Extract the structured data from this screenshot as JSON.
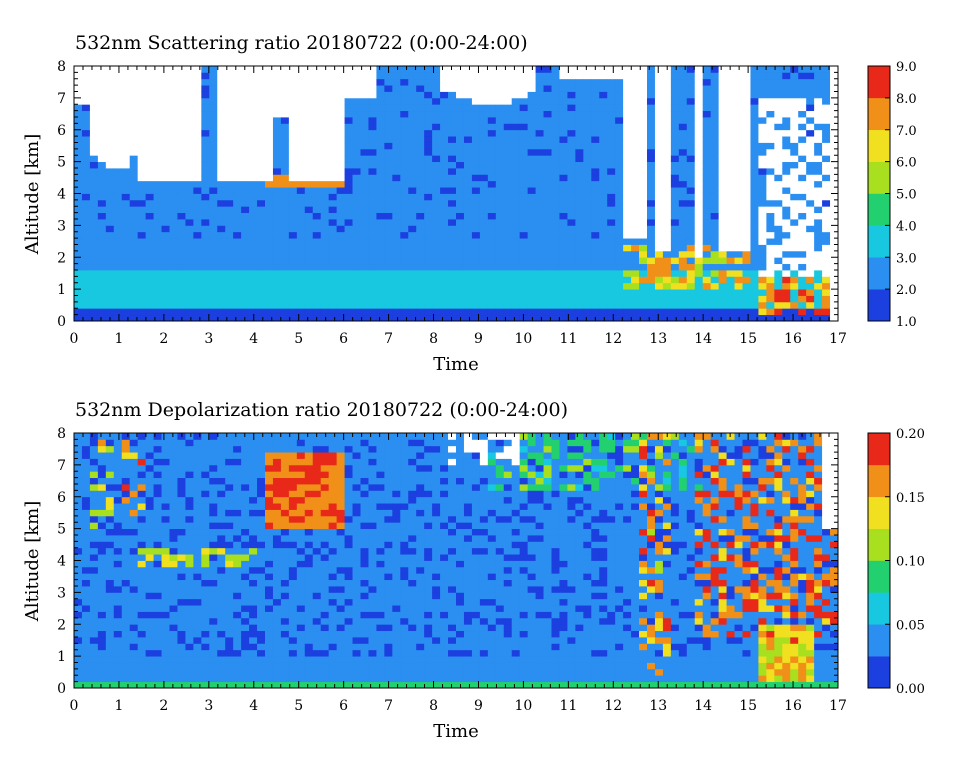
{
  "chart_data": [
    {
      "type": "heatmap",
      "title": "532nm Scattering ratio  20180722 (0:00-24:00)",
      "xlabel": "Time",
      "ylabel": "Altitude [km]",
      "xlim": [
        0,
        17
      ],
      "ylim": [
        0,
        8
      ],
      "x_ticks": [
        "0",
        "1",
        "2",
        "3",
        "4",
        "5",
        "6",
        "7",
        "8",
        "9",
        "10",
        "11",
        "12",
        "13",
        "14",
        "15",
        "16",
        "17"
      ],
      "y_ticks": [
        "0",
        "1",
        "2",
        "3",
        "4",
        "5",
        "6",
        "7",
        "8"
      ],
      "colorbar": {
        "range": [
          1.0,
          9.0
        ],
        "ticks": [
          "1.0",
          "2.0",
          "3.0",
          "4.0",
          "5.0",
          "6.0",
          "7.0",
          "8.0",
          "9.0"
        ]
      },
      "colors": [
        "#1c3fe0",
        "#2a8ff0",
        "#18c8e0",
        "#22d070",
        "#a8e020",
        "#f0e020",
        "#f09018",
        "#e82818"
      ],
      "missing_color": "#ffffff"
    },
    {
      "type": "heatmap",
      "title": "532nm Depolarization ratio  20180722 (0:00-24:00)",
      "xlabel": "Time",
      "ylabel": "Altitude [km]",
      "xlim": [
        0,
        17
      ],
      "ylim": [
        0,
        8
      ],
      "x_ticks": [
        "0",
        "1",
        "2",
        "3",
        "4",
        "5",
        "6",
        "7",
        "8",
        "9",
        "10",
        "11",
        "12",
        "13",
        "14",
        "15",
        "16",
        "17"
      ],
      "y_ticks": [
        "0",
        "1",
        "2",
        "3",
        "4",
        "5",
        "6",
        "7",
        "8"
      ],
      "colorbar": {
        "range": [
          0.0,
          0.2
        ],
        "ticks": [
          "0.00",
          "0.05",
          "0.10",
          "0.15",
          "0.20"
        ]
      },
      "colors": [
        "#1c3fe0",
        "#2a8ff0",
        "#18c8e0",
        "#22d070",
        "#a8e020",
        "#f0e020",
        "#f09018",
        "#e82818"
      ],
      "missing_color": "#ffffff"
    }
  ]
}
